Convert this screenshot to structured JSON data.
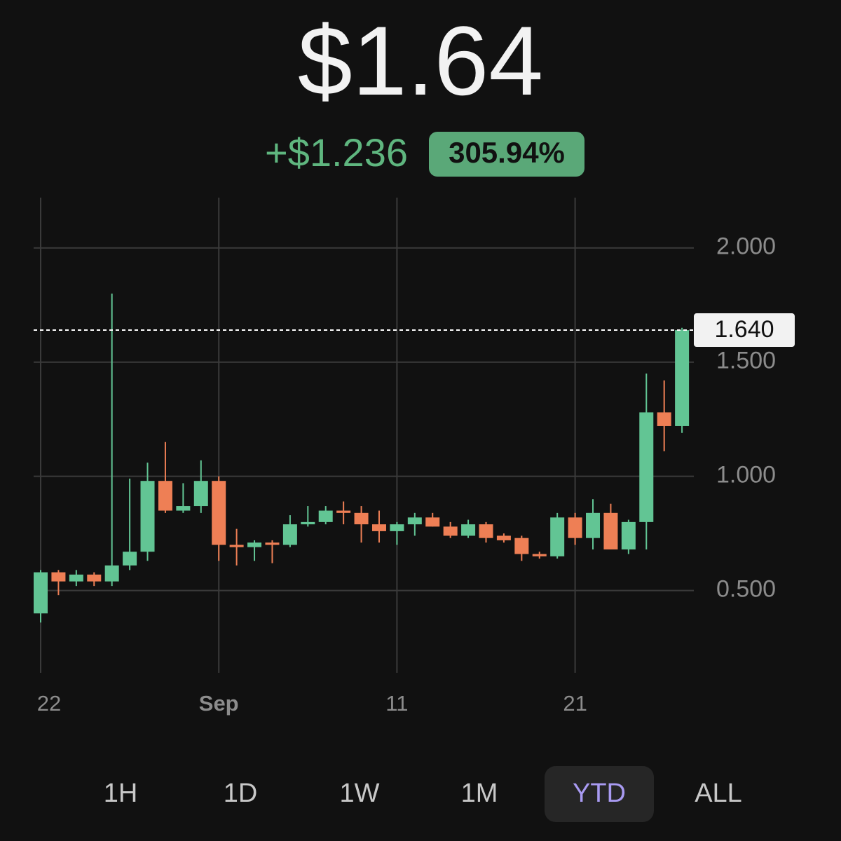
{
  "header": {
    "price": "$1.64",
    "change": "+$1.236",
    "change_pct": "305.94%"
  },
  "chart_data": {
    "type": "candlestick",
    "categories": [
      "22",
      null,
      null,
      null,
      null,
      null,
      null,
      null,
      null,
      null,
      "Sep",
      null,
      null,
      null,
      null,
      null,
      null,
      null,
      null,
      null,
      "11",
      null,
      null,
      null,
      null,
      null,
      null,
      null,
      null,
      null,
      "21",
      null,
      null,
      null,
      null,
      null,
      null
    ],
    "open": [
      0.4,
      0.58,
      0.54,
      0.57,
      0.54,
      0.61,
      0.67,
      0.98,
      0.85,
      0.87,
      0.98,
      0.7,
      0.69,
      0.71,
      0.7,
      0.79,
      0.8,
      0.85,
      0.84,
      0.79,
      0.76,
      0.79,
      0.82,
      0.78,
      0.74,
      0.79,
      0.74,
      0.73,
      0.66,
      0.65,
      0.82,
      0.73,
      0.84,
      0.68,
      0.8,
      1.28,
      1.22
    ],
    "high": [
      0.59,
      0.59,
      0.59,
      0.58,
      1.8,
      0.99,
      1.06,
      1.15,
      0.97,
      1.07,
      1.0,
      0.77,
      0.72,
      0.72,
      0.83,
      0.87,
      0.87,
      0.89,
      0.87,
      0.85,
      0.8,
      0.84,
      0.84,
      0.8,
      0.81,
      0.8,
      0.75,
      0.74,
      0.67,
      0.84,
      0.84,
      0.9,
      0.88,
      0.81,
      1.45,
      1.42,
      1.65
    ],
    "low": [
      0.36,
      0.48,
      0.52,
      0.52,
      0.52,
      0.59,
      0.63,
      0.84,
      0.84,
      0.84,
      0.63,
      0.61,
      0.63,
      0.62,
      0.69,
      0.78,
      0.79,
      0.79,
      0.71,
      0.71,
      0.7,
      0.74,
      0.78,
      0.73,
      0.73,
      0.71,
      0.71,
      0.63,
      0.64,
      0.64,
      0.7,
      0.68,
      0.68,
      0.66,
      0.68,
      1.11,
      1.19
    ],
    "close": [
      0.58,
      0.54,
      0.57,
      0.54,
      0.61,
      0.67,
      0.98,
      0.85,
      0.87,
      0.98,
      0.7,
      0.69,
      0.71,
      0.7,
      0.79,
      0.8,
      0.85,
      0.84,
      0.79,
      0.76,
      0.79,
      0.82,
      0.78,
      0.74,
      0.79,
      0.73,
      0.72,
      0.66,
      0.65,
      0.82,
      0.73,
      0.84,
      0.68,
      0.8,
      1.28,
      1.22,
      1.64
    ],
    "up_color": "#62c594",
    "down_color": "#ee7f55",
    "ylim": [
      0.14,
      2.22
    ],
    "yticks": [
      {
        "value": 0.5,
        "label": "0.500"
      },
      {
        "value": 1,
        "label": "1.000"
      },
      {
        "value": 1.5,
        "label": "1.500"
      },
      {
        "value": 2,
        "label": "2.000"
      }
    ],
    "last_price": {
      "value": 1.64,
      "label": "1.640"
    },
    "grid": true
  },
  "timeframes": {
    "options": [
      "1H",
      "1D",
      "1W",
      "1M",
      "YTD",
      "ALL"
    ],
    "selected_index": 4
  }
}
